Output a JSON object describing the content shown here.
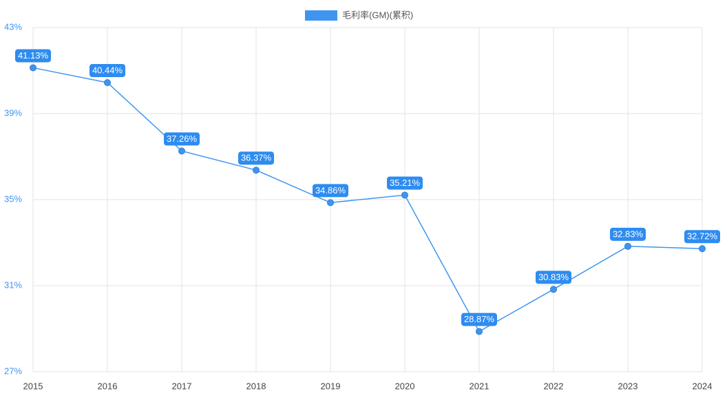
{
  "chart_data": {
    "type": "line",
    "categories": [
      "2015",
      "2016",
      "2017",
      "2018",
      "2019",
      "2020",
      "2021",
      "2022",
      "2023",
      "2024"
    ],
    "series": [
      {
        "name": "毛利率(GM)(累积)",
        "color": "#3e95f0",
        "values": [
          41.13,
          40.44,
          37.26,
          36.37,
          34.86,
          35.21,
          28.87,
          30.83,
          32.83,
          32.72
        ],
        "value_labels": [
          "41.13%",
          "40.44%",
          "37.26%",
          "36.37%",
          "34.86%",
          "35.21%",
          "28.87%",
          "30.83%",
          "32.83%",
          "32.72%"
        ]
      }
    ],
    "ylim": [
      27,
      43
    ],
    "yticks": [
      {
        "value": 27,
        "label": "27%"
      },
      {
        "value": 31,
        "label": "31%"
      },
      {
        "value": 35,
        "label": "35%"
      },
      {
        "value": 39,
        "label": "39%"
      },
      {
        "value": 43,
        "label": "43%"
      }
    ],
    "grid": true,
    "legend": "top"
  }
}
